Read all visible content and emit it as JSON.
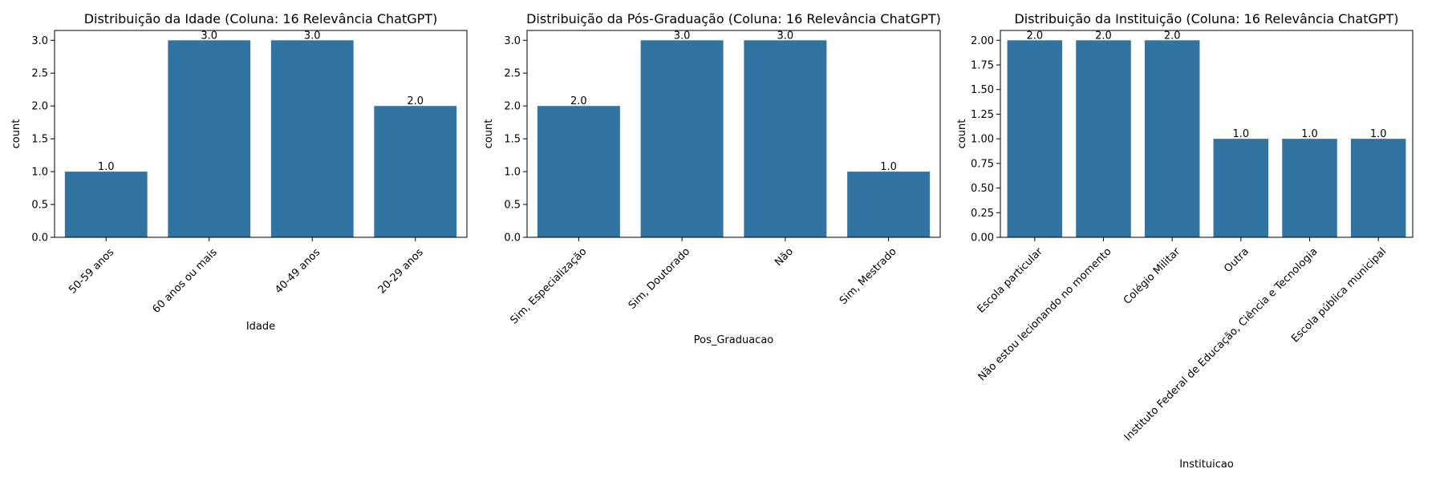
{
  "chart_data": [
    {
      "type": "bar",
      "title": "Distribuição da Idade (Coluna: 16 Relevância ChatGPT)",
      "xlabel": "Idade",
      "ylabel": "count",
      "categories": [
        "50-59 anos",
        "60 anos ou mais",
        "40-49 anos",
        "20-29 anos"
      ],
      "values": [
        1.0,
        3.0,
        3.0,
        2.0
      ],
      "value_labels": [
        "1.0",
        "3.0",
        "3.0",
        "2.0"
      ],
      "ylim": [
        0,
        3.15
      ],
      "yticks": [
        0.0,
        0.5,
        1.0,
        1.5,
        2.0,
        2.5,
        3.0
      ],
      "ytick_labels": [
        "0.0",
        "0.5",
        "1.0",
        "1.5",
        "2.0",
        "2.5",
        "3.0"
      ],
      "bar_color": "#3274a1",
      "grid": false
    },
    {
      "type": "bar",
      "title": "Distribuição da Pós-Graduação (Coluna: 16 Relevância ChatGPT)",
      "xlabel": "Pos_Graduacao",
      "ylabel": "count",
      "categories": [
        "Sim, Especialização",
        "Sim, Doutorado",
        "Não",
        "Sim, Mestrado"
      ],
      "values": [
        2.0,
        3.0,
        3.0,
        1.0
      ],
      "value_labels": [
        "2.0",
        "3.0",
        "3.0",
        "1.0"
      ],
      "ylim": [
        0,
        3.15
      ],
      "yticks": [
        0.0,
        0.5,
        1.0,
        1.5,
        2.0,
        2.5,
        3.0
      ],
      "ytick_labels": [
        "0.0",
        "0.5",
        "1.0",
        "1.5",
        "2.0",
        "2.5",
        "3.0"
      ],
      "bar_color": "#3274a1",
      "grid": false
    },
    {
      "type": "bar",
      "title": "Distribuição da Instituição (Coluna: 16 Relevância ChatGPT)",
      "xlabel": "Instituicao",
      "ylabel": "count",
      "categories": [
        "Escola particular",
        "Não estou lecionando no momento",
        "Colégio Militar",
        "Outra",
        "Instituto Federal de Educação, Ciência e Tecnologia",
        "Escola pública municipal"
      ],
      "values": [
        2.0,
        2.0,
        2.0,
        1.0,
        1.0,
        1.0
      ],
      "value_labels": [
        "2.0",
        "2.0",
        "2.0",
        "1.0",
        "1.0",
        "1.0"
      ],
      "ylim": [
        0,
        2.1
      ],
      "yticks": [
        0.0,
        0.25,
        0.5,
        0.75,
        1.0,
        1.25,
        1.5,
        1.75,
        2.0
      ],
      "ytick_labels": [
        "0.00",
        "0.25",
        "0.50",
        "0.75",
        "1.00",
        "1.25",
        "1.50",
        "1.75",
        "2.00"
      ],
      "bar_color": "#3274a1",
      "grid": false
    }
  ]
}
